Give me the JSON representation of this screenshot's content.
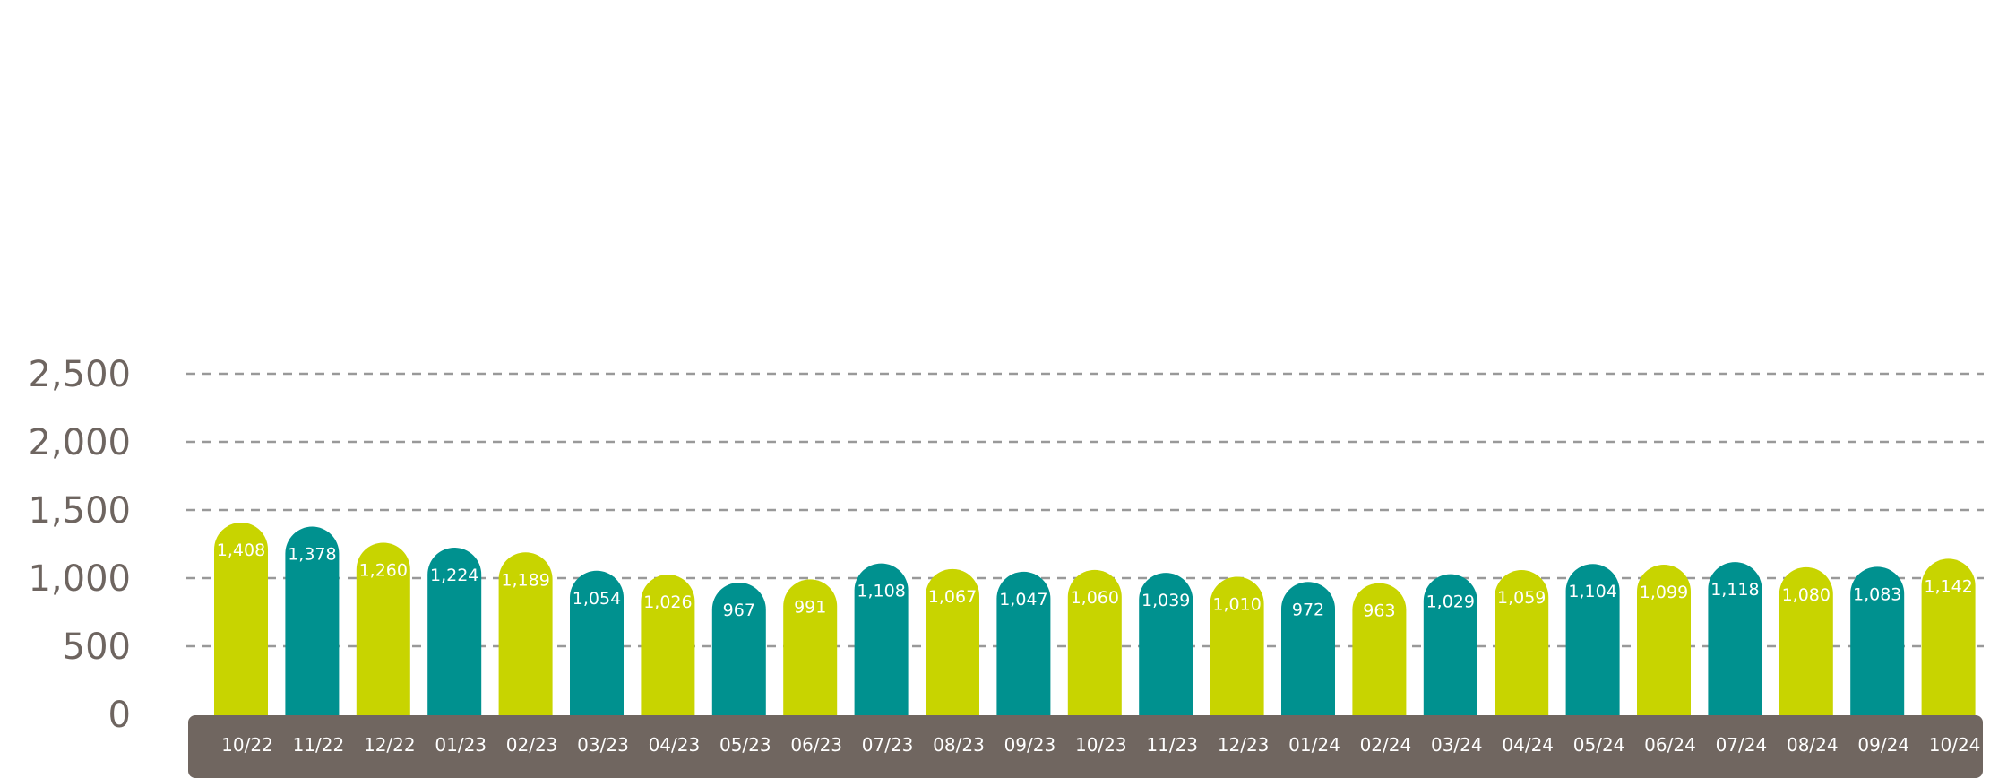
{
  "chart_data": {
    "type": "bar",
    "title": "",
    "xlabel": "",
    "ylabel": "",
    "ylim": [
      0,
      2500
    ],
    "yticks": [
      0,
      500,
      1000,
      1500,
      2000,
      2500
    ],
    "ytick_labels": [
      "0",
      "500",
      "1,000",
      "1,500",
      "2,000",
      "2,500"
    ],
    "grid": true,
    "categories": [
      "10/22",
      "11/22",
      "12/22",
      "01/23",
      "02/23",
      "03/23",
      "04/23",
      "05/23",
      "06/23",
      "07/23",
      "08/23",
      "09/23",
      "10/23",
      "11/23",
      "12/23",
      "01/24",
      "02/24",
      "03/24",
      "04/24",
      "05/24",
      "06/24",
      "07/24",
      "08/24",
      "09/24",
      "10/24"
    ],
    "values": [
      1408,
      1378,
      1260,
      1224,
      1189,
      1054,
      1026,
      967,
      991,
      1108,
      1067,
      1047,
      1060,
      1039,
      1010,
      972,
      963,
      1029,
      1059,
      1104,
      1099,
      1118,
      1080,
      1083,
      1142
    ],
    "value_labels": [
      "1,408",
      "1,378",
      "1,260",
      "1,224",
      "1,189",
      "1,054",
      "1,026",
      "967",
      "991",
      "1,108",
      "1,067",
      "1,047",
      "1,060",
      "1,039",
      "1,010",
      "972",
      "963",
      "1,029",
      "1,059",
      "1,104",
      "1,099",
      "1,118",
      "1,080",
      "1,083",
      "1,142"
    ],
    "bar_colors": [
      "#c8d400",
      "#00918f",
      "#c8d400",
      "#00918f",
      "#c8d400",
      "#00918f",
      "#c8d400",
      "#00918f",
      "#c8d400",
      "#00918f",
      "#c8d400",
      "#00918f",
      "#c8d400",
      "#00918f",
      "#c8d400",
      "#00918f",
      "#c8d400",
      "#00918f",
      "#c8d400",
      "#00918f",
      "#c8d400",
      "#00918f",
      "#c8d400",
      "#00918f",
      "#c8d400"
    ],
    "axis_band_color": "#706660",
    "grid_color": "#999999",
    "tick_label_color": "#6e6560"
  }
}
